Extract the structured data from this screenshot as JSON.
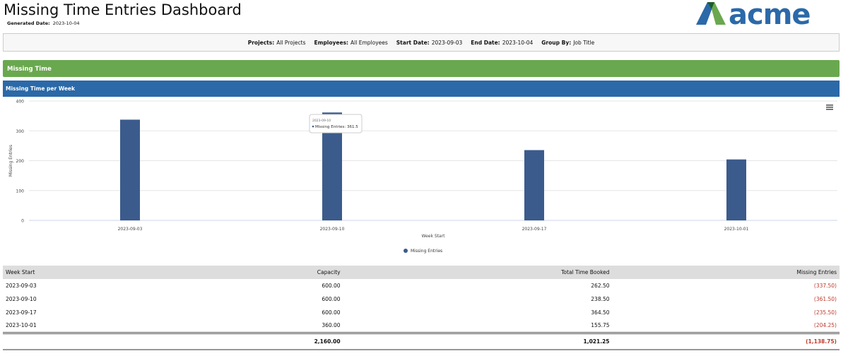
{
  "header": {
    "title": "Missing Time Entries Dashboard",
    "generated_label": "Generated Date:",
    "generated_value": "2023-10-04",
    "logo_text": "acme"
  },
  "filters": [
    {
      "label": "Projects:",
      "value": "All Projects"
    },
    {
      "label": "Employees:",
      "value": "All Employees"
    },
    {
      "label": "Start Date:",
      "value": "2023-09-03"
    },
    {
      "label": "End Date:",
      "value": "2023-10-04"
    },
    {
      "label": "Group By:",
      "value": "Job Title"
    }
  ],
  "section_title": "Missing Time",
  "chart_panel_title": "Missing Time per Week",
  "chart_data": {
    "type": "bar",
    "categories": [
      "2023-09-03",
      "2023-09-10",
      "2023-09-17",
      "2023-10-01"
    ],
    "series": [
      {
        "name": "Missing Entries",
        "values": [
          337.5,
          361.5,
          235.5,
          204.25
        ]
      }
    ],
    "xlabel": "Week Start",
    "ylabel": "Missing Entries",
    "ylim": [
      0,
      400
    ],
    "yticks": [
      0,
      100,
      200,
      300,
      400
    ],
    "grid": true,
    "legend": "bottom",
    "color": "#3b5b8c",
    "tooltip": {
      "title": "2023-09-10",
      "text": "Missing Entries: 361.5"
    }
  },
  "table": {
    "headers": [
      "Week Start",
      "Capacity",
      "Total Time Booked",
      "Missing Entries"
    ],
    "rows": [
      [
        "2023-09-03",
        "600.00",
        "262.50",
        "(337.50)"
      ],
      [
        "2023-09-10",
        "600.00",
        "238.50",
        "(361.50)"
      ],
      [
        "2023-09-17",
        "600.00",
        "364.50",
        "(235.50)"
      ],
      [
        "2023-10-01",
        "360.00",
        "155.75",
        "(204.25)"
      ]
    ],
    "totals": [
      "",
      "2,160.00",
      "1,021.25",
      "(1,138.75)"
    ]
  }
}
